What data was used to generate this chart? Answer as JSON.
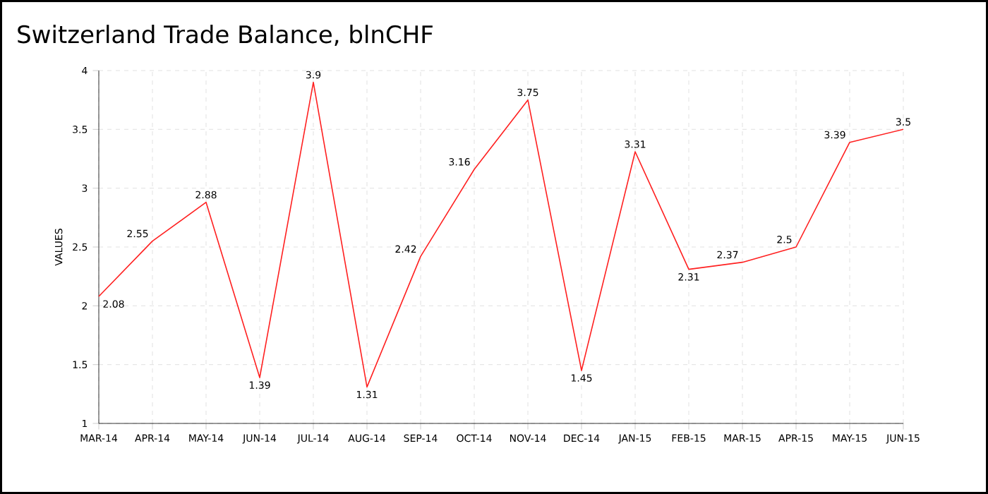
{
  "chart_data": {
    "type": "line",
    "title": "Switzerland Trade Balance, blnCHF",
    "ylabel": "VALUES",
    "categories": [
      "MAR-14",
      "APR-14",
      "MAY-14",
      "JUN-14",
      "JUL-14",
      "AUG-14",
      "SEP-14",
      "OCT-14",
      "NOV-14",
      "DEC-14",
      "JAN-15",
      "FEB-15",
      "MAR-15",
      "APR-15",
      "MAY-15",
      "JUN-15"
    ],
    "series": [
      {
        "color": "#ff2020",
        "values": [
          2.08,
          2.55,
          2.88,
          1.39,
          3.9,
          1.31,
          2.42,
          3.16,
          3.75,
          1.45,
          3.31,
          2.31,
          2.37,
          2.5,
          3.39,
          3.5
        ]
      }
    ],
    "ylim": [
      1,
      4
    ],
    "yticks": [
      1,
      1.5,
      2,
      2.5,
      3,
      3.5,
      4
    ],
    "grid": true,
    "data_labels": true,
    "marker": "none",
    "line_style": "solid"
  }
}
